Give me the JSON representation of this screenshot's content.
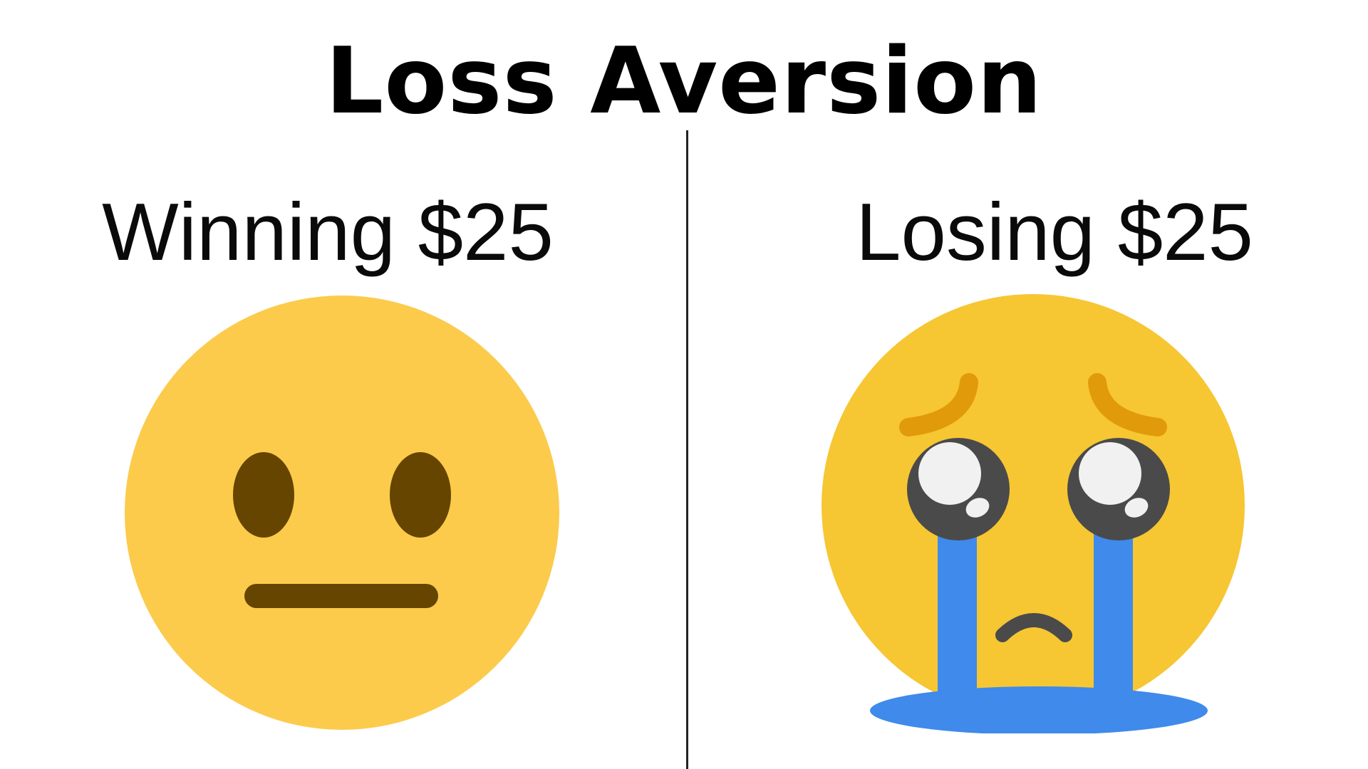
{
  "title": "Loss Aversion",
  "panels": [
    {
      "label": "Winning $25",
      "emoji": "neutral-face-icon"
    },
    {
      "label": "Losing $25",
      "emoji": "crying-face-icon"
    }
  ],
  "colors": {
    "face_yellow": "#FCCB4C",
    "face_yellow_2": "#F6C633",
    "feature_brown": "#664500",
    "eyebrow_orange": "#E09A0A",
    "tear_blue": "#3F8AEB",
    "eye_dark": "#4A4A4A",
    "eye_white": "#F1F1F1",
    "divider": "#222222"
  }
}
